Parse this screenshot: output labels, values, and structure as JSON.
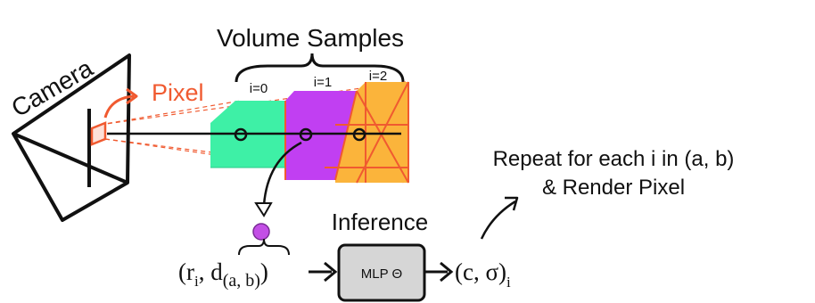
{
  "title": "Volume Samples",
  "camera_label": "Camera",
  "pixel_label": "Pixel",
  "sample_labels": [
    "i=0",
    "i=1",
    "i=2"
  ],
  "inference_label": "Inference",
  "mlp_label": "MLP Θ",
  "input": {
    "open": "(r",
    "sub_i": "i",
    "comma_d": ", d",
    "sub_ab": "(a, b)",
    "close": ")"
  },
  "output": {
    "main": "(c, σ)",
    "sub": "i"
  },
  "repeat_line1": "Repeat for each i in (a, b)",
  "repeat_line2": "& Render Pixel",
  "colors": {
    "sample0": "#3ef0a6",
    "sample1": "#c13ff2",
    "sample2": "#fbb43b",
    "accent": "#f05a30",
    "point": "#c34fe6",
    "box": "#d6d6d6"
  }
}
